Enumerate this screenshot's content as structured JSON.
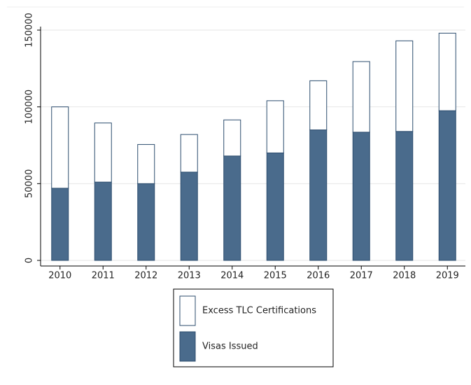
{
  "chart_data": {
    "type": "stacked_bar",
    "categories": [
      "2010",
      "2011",
      "2012",
      "2013",
      "2014",
      "2015",
      "2016",
      "2017",
      "2018",
      "2019"
    ],
    "series": [
      {
        "name": "Visas Issued",
        "color": "#4a6b8c",
        "values": [
          47000,
          51000,
          50000,
          57500,
          68000,
          70000,
          85000,
          83500,
          84000,
          97500
        ]
      },
      {
        "name": "Excess TLC Certifications",
        "color": "#ffffff",
        "values": [
          53000,
          38500,
          25500,
          24500,
          23500,
          34000,
          32000,
          46000,
          59000,
          50500
        ]
      }
    ],
    "ylim": [
      0,
      150000
    ],
    "yticks": [
      0,
      50000,
      100000,
      150000
    ],
    "grid": true
  }
}
